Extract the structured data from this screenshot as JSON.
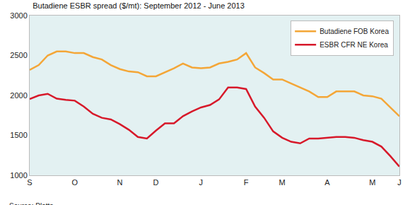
{
  "chart_data": {
    "type": "line",
    "title": "Butadiene ESBR spread ($/mt): September 2012 - June 2013",
    "source": "Source: Platts",
    "categories": [
      "S",
      null,
      null,
      null,
      null,
      "O",
      null,
      null,
      null,
      null,
      "N",
      null,
      null,
      null,
      "D",
      null,
      null,
      null,
      null,
      "J",
      null,
      null,
      null,
      null,
      "F",
      null,
      null,
      null,
      "M",
      null,
      null,
      null,
      null,
      "A",
      null,
      null,
      null,
      null,
      "M",
      null,
      null,
      "J"
    ],
    "series": [
      {
        "name": "Butadiene FOB Korea",
        "color": "#f4a637",
        "values": [
          2320,
          2380,
          2500,
          2550,
          2550,
          2530,
          2530,
          2480,
          2450,
          2380,
          2330,
          2300,
          2290,
          2240,
          2240,
          2290,
          2340,
          2400,
          2350,
          2340,
          2350,
          2400,
          2420,
          2450,
          2530,
          2350,
          2280,
          2200,
          2200,
          2150,
          2100,
          2050,
          1980,
          1980,
          2050,
          2050,
          2050,
          2000,
          1990,
          1960,
          1850,
          1740
        ]
      },
      {
        "name": "ESBR CFR NE Korea",
        "color": "#d7192a",
        "values": [
          1955,
          2000,
          2020,
          1960,
          1945,
          1935,
          1860,
          1770,
          1720,
          1700,
          1640,
          1570,
          1480,
          1460,
          1560,
          1650,
          1650,
          1740,
          1800,
          1850,
          1880,
          1950,
          2100,
          2100,
          2080,
          1860,
          1720,
          1550,
          1470,
          1420,
          1400,
          1460,
          1460,
          1470,
          1480,
          1480,
          1470,
          1440,
          1420,
          1360,
          1240,
          1110
        ]
      }
    ],
    "ylim": [
      1000,
      3000
    ],
    "yticks": [
      1000,
      1500,
      2000,
      2500,
      3000
    ],
    "grid": false,
    "legend": "top-right"
  }
}
